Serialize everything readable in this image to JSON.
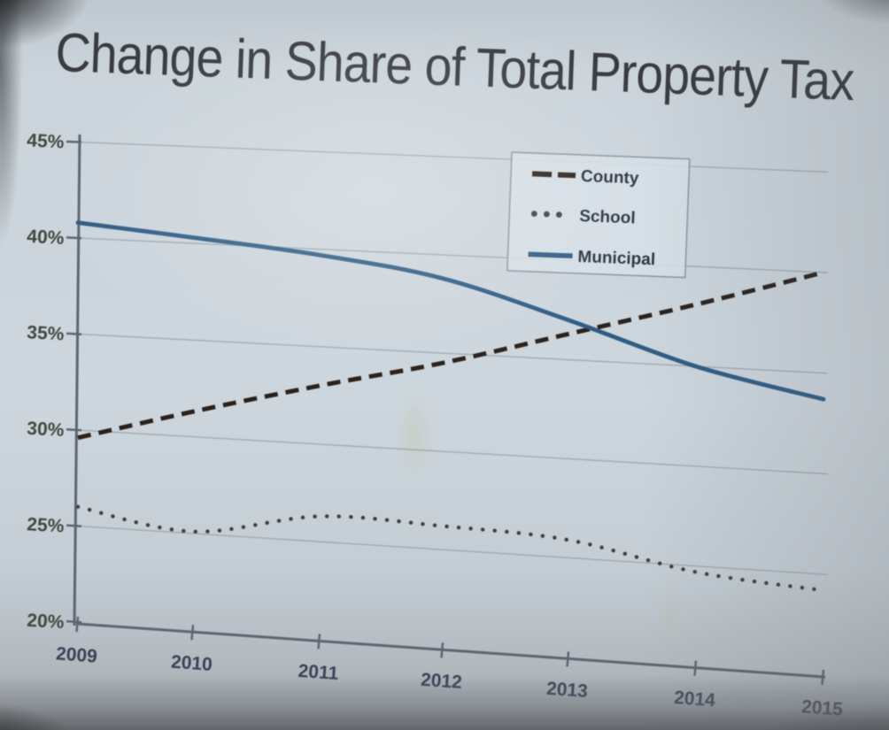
{
  "title": "Change in Share of Total Property Tax",
  "legend": {
    "position": "top-right-inside",
    "items": [
      {
        "label": "County",
        "style": "dashed",
        "color": "#2a211b"
      },
      {
        "label": "School",
        "style": "dotted",
        "color": "#3b423f"
      },
      {
        "label": "Municipal",
        "style": "solid",
        "color": "#2f5c84"
      }
    ]
  },
  "y_axis": {
    "tick_labels": [
      "45%",
      "40%",
      "35%",
      "30%",
      "25%",
      "20%"
    ],
    "min": 20,
    "max": 45,
    "step": 5
  },
  "x_axis": {
    "tick_labels": [
      "2009",
      "2010",
      "2011",
      "2012",
      "2013",
      "2014",
      "2015"
    ]
  },
  "chart_data": {
    "type": "line",
    "title": "Change in Share of Total Property Tax",
    "x": [
      2009,
      2010,
      2011,
      2012,
      2013,
      2014,
      2015
    ],
    "series": [
      {
        "name": "County",
        "line_style": "dashed",
        "color": "#2a211b",
        "values": [
          29.6,
          31.3,
          33.0,
          34.5,
          36.3,
          38.1,
          40.0
        ]
      },
      {
        "name": "School",
        "line_style": "dotted",
        "color": "#3b423f",
        "values": [
          26.0,
          25.1,
          26.3,
          26.2,
          25.9,
          24.7,
          24.2
        ]
      },
      {
        "name": "Municipal",
        "line_style": "solid",
        "color": "#2f5c84",
        "values": [
          40.8,
          40.3,
          39.7,
          38.8,
          37.0,
          35.0,
          33.7
        ]
      }
    ],
    "xlabel": "",
    "ylabel": "",
    "ylim": [
      20,
      45
    ],
    "ytick_format": "percent",
    "grid": true,
    "legend_position": "top-right-inside"
  },
  "colors": {
    "background": "#ccd5dc",
    "gridline": "#98a1a9",
    "axis": "#5d6670",
    "title_text": "#3a3b42",
    "y_label_text": "#43473e",
    "x_label_text": "#3e4156",
    "legend_text": "#2a3340",
    "legend_border": "#8f99a2",
    "legend_fill": "#d6dfe6"
  }
}
